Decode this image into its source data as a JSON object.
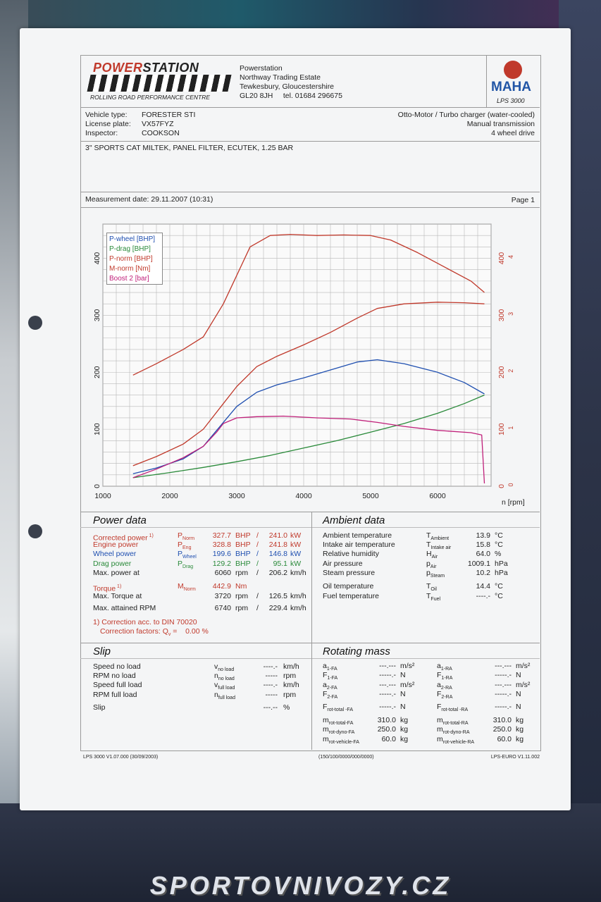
{
  "header": {
    "brand": {
      "part1": "POWER",
      "part2": "STATION"
    },
    "brand_sub": "ROLLING ROAD PERFORMANCE CENTRE",
    "address": [
      "Powerstation",
      "Northway Trading Estate",
      "Tewkesbury, Gloucestershire",
      "GL20 8JH     tel. 01684 296675"
    ],
    "maha_text": "MAHA",
    "maha_model": "LPS 3000"
  },
  "vehicle": {
    "type_label": "Vehicle type:",
    "type_value": "FORESTER STI",
    "plate_label": "License plate:",
    "plate_value": "VX57FYZ",
    "inspector_label": "Inspector:",
    "inspector_value": "COOKSON",
    "engine": "Otto-Motor / Turbo charger (water-cooled)",
    "transmission": "Manual transmission",
    "drive": "4 wheel drive"
  },
  "remarks": "3\" SPORTS CAT MILTEK, PANEL FILTER, ECUTEK, 1.25 BAR",
  "measurement": {
    "date": "Measurement date: 29.11.2007 (10:31)",
    "page": "Page 1"
  },
  "chart_data": {
    "type": "line",
    "xlabel": "n [rpm]",
    "xlim": [
      1000,
      6700
    ],
    "ylim": [
      0,
      460
    ],
    "x_ticks": [
      "1000",
      "2000",
      "3000",
      "4000",
      "5000",
      "6000"
    ],
    "y_ticks_left": [
      "0",
      "100",
      "200",
      "300",
      "400"
    ],
    "y_ticks_right": [
      "0",
      "100",
      "200",
      "300",
      "400"
    ],
    "y_ticks_right2": [
      "0",
      "1",
      "2",
      "3",
      "4"
    ],
    "legend": [
      "P-wheel [BHP]",
      "P-drag [BHP]",
      "P-norm [BHP]",
      "M-norm [Nm]",
      "Boost 2 [bar]"
    ],
    "series": [
      {
        "name": "P-wheel [BHP]",
        "color": "#1f4fb0",
        "x": [
          1450,
          1800,
          2200,
          2500,
          2800,
          3000,
          3300,
          3600,
          4000,
          4400,
          4800,
          5100,
          5500,
          6000,
          6400,
          6700
        ],
        "y": [
          22,
          32,
          48,
          70,
          112,
          140,
          165,
          178,
          190,
          204,
          218,
          222,
          215,
          200,
          182,
          162
        ]
      },
      {
        "name": "P-drag [BHP]",
        "color": "#2a8a3a",
        "x": [
          1450,
          2000,
          2500,
          3000,
          3500,
          4000,
          4500,
          5000,
          5500,
          6000,
          6400,
          6700
        ],
        "y": [
          15,
          24,
          33,
          43,
          54,
          67,
          80,
          95,
          110,
          128,
          145,
          160
        ]
      },
      {
        "name": "P-norm [BHP]",
        "color": "#c0392b",
        "x": [
          1450,
          1800,
          2200,
          2500,
          2800,
          3000,
          3300,
          3600,
          4000,
          4400,
          4800,
          5100,
          5500,
          6000,
          6400,
          6700
        ],
        "y": [
          36,
          52,
          74,
          100,
          145,
          175,
          210,
          228,
          248,
          270,
          295,
          312,
          320,
          323,
          322,
          320
        ]
      },
      {
        "name": "M-norm [Nm]",
        "color": "#c0392b",
        "x": [
          1450,
          1800,
          2200,
          2500,
          2800,
          3000,
          3200,
          3500,
          3800,
          4200,
          4600,
          5000,
          5300,
          5700,
          6100,
          6500,
          6700
        ],
        "y": [
          195,
          215,
          240,
          262,
          320,
          370,
          420,
          440,
          442,
          440,
          441,
          440,
          432,
          410,
          385,
          360,
          340
        ]
      },
      {
        "name": "Boost 2 [bar]",
        "color": "#c0207a",
        "x": [
          1450,
          1800,
          2200,
          2500,
          2700,
          2800,
          3000,
          3300,
          3700,
          4200,
          4700,
          5100,
          5500,
          6000,
          6500,
          6660,
          6700
        ],
        "y": [
          0.15,
          0.3,
          0.5,
          0.7,
          0.95,
          1.1,
          1.2,
          1.22,
          1.23,
          1.2,
          1.18,
          1.12,
          1.05,
          0.98,
          0.94,
          0.9,
          0.05
        ]
      }
    ]
  },
  "power": {
    "title": "Power data",
    "rows": [
      {
        "label": "Corrected power",
        "sup": "1)",
        "sym": "P",
        "sub": "Norm",
        "v1": "327.7",
        "u1": "BHP",
        "sep": "/",
        "v2": "241.0",
        "u2": "kW"
      },
      {
        "label": "Engine power",
        "sup": "",
        "sym": "P",
        "sub": "Eng",
        "v1": "328.8",
        "u1": "BHP",
        "sep": "/",
        "v2": "241.8",
        "u2": "kW"
      },
      {
        "label": "Wheel power",
        "sup": "",
        "sym": "P",
        "sub": "Wheel",
        "v1": "199.6",
        "u1": "BHP",
        "sep": "/",
        "v2": "146.8",
        "u2": "kW"
      },
      {
        "label": "Drag power",
        "sup": "",
        "sym": "P",
        "sub": "Drag",
        "v1": "129.2",
        "u1": "BHP",
        "sep": "/",
        "v2": "95.1",
        "u2": "kW"
      },
      {
        "label": "Max. power at",
        "sup": "",
        "sym": "",
        "sub": "",
        "v1": "6060",
        "u1": "rpm",
        "sep": "/",
        "v2": "206.2",
        "u2": "km/h"
      },
      {
        "label": "Torque",
        "sup": "1)",
        "sym": "M",
        "sub": "Norm",
        "v1": "442.9",
        "u1": "Nm",
        "sep": "",
        "v2": "",
        "u2": ""
      },
      {
        "label": "Max. Torque at",
        "sup": "",
        "sym": "",
        "sub": "",
        "v1": "3720",
        "u1": "rpm",
        "sep": "/",
        "v2": "126.5",
        "u2": "km/h"
      },
      {
        "label": "Max. attained RPM",
        "sup": "",
        "sym": "",
        "sub": "",
        "v1": "6740",
        "u1": "rpm",
        "sep": "/",
        "v2": "229.4",
        "u2": "km/h"
      }
    ],
    "note1": "1) Correction acc. to DIN 70020",
    "note2": "Correction factors: Q",
    "note2_sub": "v",
    "note2_val": "=    0.00 %"
  },
  "ambient": {
    "title": "Ambient data",
    "rows": [
      {
        "label": "Ambient temperature",
        "sym": "T",
        "sub": "Ambient",
        "val": "13.9",
        "unit": "°C"
      },
      {
        "label": "Intake air temperature",
        "sym": "T",
        "sub": "Intake air",
        "val": "15.8",
        "unit": "°C"
      },
      {
        "label": "Relative humidity",
        "sym": "H",
        "sub": "Air",
        "val": "64.0",
        "unit": "%"
      },
      {
        "label": "Air pressure",
        "sym": "p",
        "sub": "Air",
        "val": "1009.1",
        "unit": "hPa"
      },
      {
        "label": "Steam pressure",
        "sym": "p",
        "sub": "Steam",
        "val": "10.2",
        "unit": "hPa"
      },
      {
        "label": "Oil temperature",
        "sym": "T",
        "sub": "Oil",
        "val": "14.4",
        "unit": "°C"
      },
      {
        "label": "Fuel temperature",
        "sym": "T",
        "sub": "Fuel",
        "val": "----.-",
        "unit": "°C"
      }
    ]
  },
  "slip": {
    "title": "Slip",
    "rows": [
      {
        "label": "Speed no load",
        "sym": "v",
        "sub": "no load",
        "val": "----.-",
        "unit": "km/h"
      },
      {
        "label": "RPM no load",
        "sym": "n",
        "sub": "no load",
        "val": "-----",
        "unit": "rpm"
      },
      {
        "label": "Speed full load",
        "sym": "v",
        "sub": "full load",
        "val": "----.-",
        "unit": "km/h"
      },
      {
        "label": "RPM full load",
        "sym": "n",
        "sub": "full load",
        "val": "-----",
        "unit": "rpm"
      },
      {
        "label": "Slip",
        "sym": "",
        "sub": "",
        "val": "---.--",
        "unit": "%"
      }
    ]
  },
  "rotating": {
    "title": "Rotating mass",
    "left": [
      {
        "sym": "a",
        "sub": "1-FA",
        "val": "---.---",
        "unit": "m/s²"
      },
      {
        "sym": "F",
        "sub": "1-FA",
        "val": "-----.-",
        "unit": "N"
      },
      {
        "sym": "a",
        "sub": "2-FA",
        "val": "---.---",
        "unit": "m/s²"
      },
      {
        "sym": "F",
        "sub": "2-FA",
        "val": "-----.-",
        "unit": "N"
      },
      {
        "sym": "F",
        "sub": "rot-total -FA",
        "val": "-----.-",
        "unit": "N"
      },
      {
        "sym": "m",
        "sub": "rot-total-FA",
        "val": "310.0",
        "unit": "kg"
      },
      {
        "sym": "m",
        "sub": "rot-dyno-FA",
        "val": "250.0",
        "unit": "kg"
      },
      {
        "sym": "m",
        "sub": "rot-vehicle-FA",
        "val": "60.0",
        "unit": "kg"
      }
    ],
    "right": [
      {
        "sym": "a",
        "sub": "1-RA",
        "val": "---.---",
        "unit": "m/s²"
      },
      {
        "sym": "F",
        "sub": "1-RA",
        "val": "-----.-",
        "unit": "N"
      },
      {
        "sym": "a",
        "sub": "2-RA",
        "val": "---.---",
        "unit": "m/s²"
      },
      {
        "sym": "F",
        "sub": "2-RA",
        "val": "-----.-",
        "unit": "N"
      },
      {
        "sym": "F",
        "sub": "rot-total -RA",
        "val": "-----.-",
        "unit": "N"
      },
      {
        "sym": "m",
        "sub": "rot-total-RA",
        "val": "310.0",
        "unit": "kg"
      },
      {
        "sym": "m",
        "sub": "rot-dyno-RA",
        "val": "250.0",
        "unit": "kg"
      },
      {
        "sym": "m",
        "sub": "rot-vehicle-RA",
        "val": "60.0",
        "unit": "kg"
      }
    ]
  },
  "footer": {
    "left": "LPS 3000 V1.07.000 (30/09/2003)",
    "center": "(150/100/0000/000/0000)",
    "right": "LPS-EURO V1.11.002"
  },
  "watermark": "SPORTOVNIVOZY.CZ",
  "colors": {
    "red": "#c0392b",
    "blue": "#1f4fb0",
    "green": "#2a8a3a",
    "magenta": "#c0207a"
  }
}
